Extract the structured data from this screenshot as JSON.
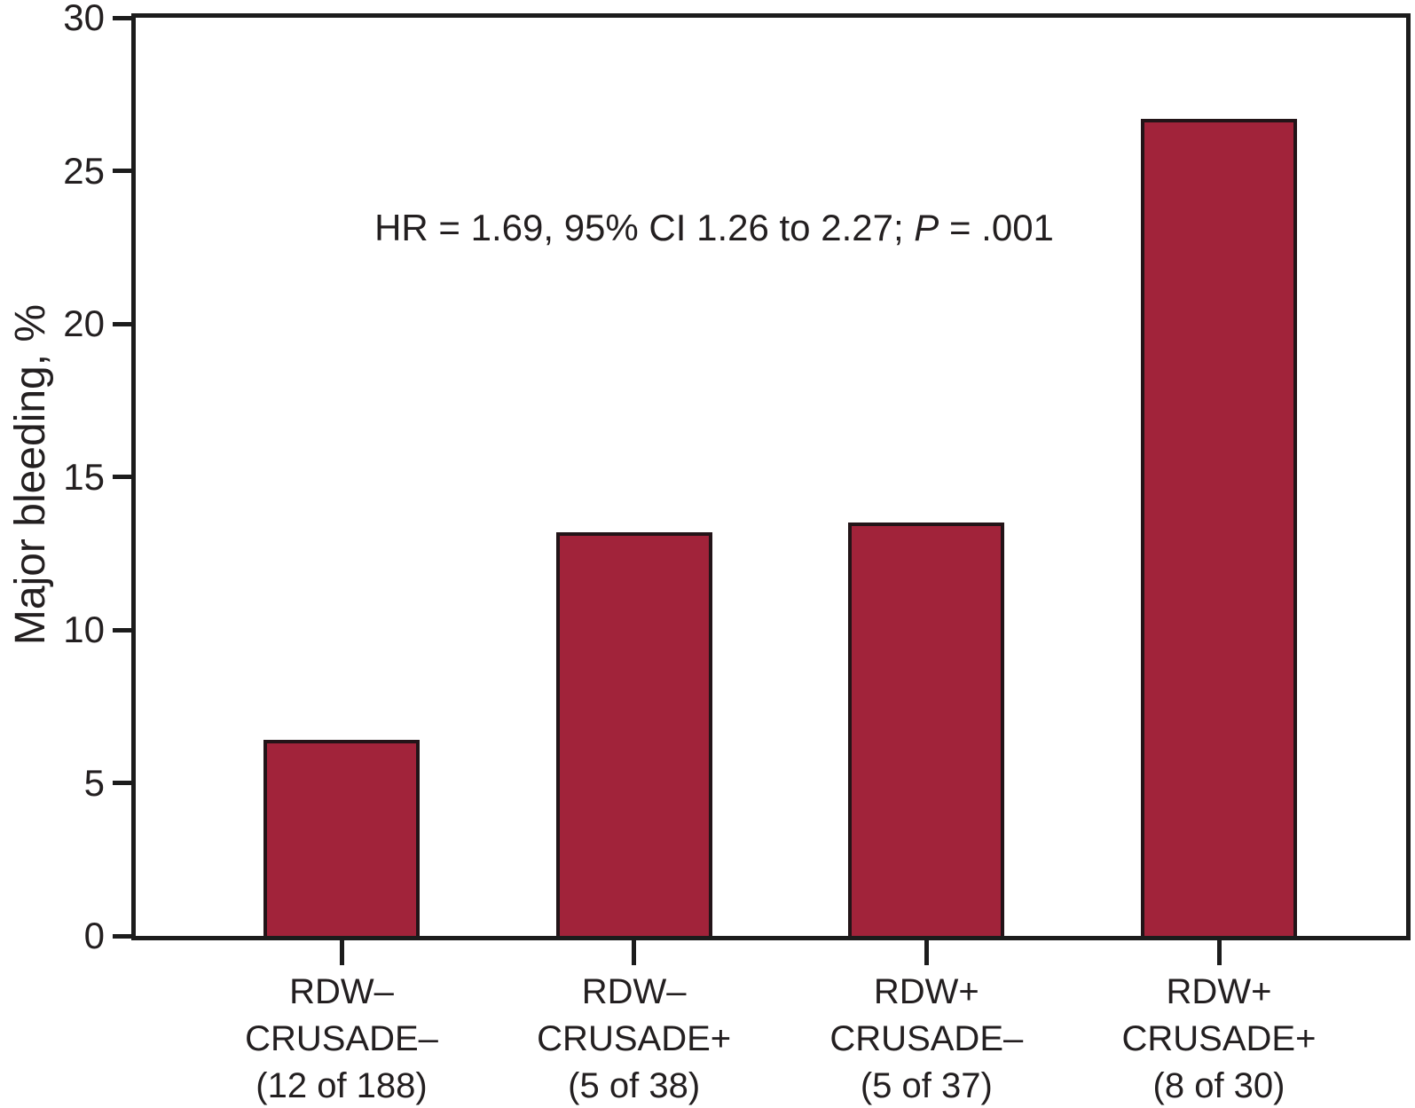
{
  "chart_data": {
    "type": "bar",
    "title": "",
    "ylabel": "Major bleeding, %",
    "xlabel": "",
    "ylim": [
      0,
      30
    ],
    "yticks": [
      0,
      5,
      10,
      15,
      20,
      25,
      30
    ],
    "categories": [
      [
        "RDW–",
        "CRUSADE–",
        "(12 of 188)"
      ],
      [
        "RDW–",
        "CRUSADE+",
        "(5 of 38)"
      ],
      [
        "RDW+",
        "CRUSADE–",
        "(5 of 37)"
      ],
      [
        "RDW+",
        "CRUSADE+",
        "(8 of 30)"
      ]
    ],
    "values": [
      6.4,
      13.2,
      13.5,
      26.7
    ],
    "counts": [
      {
        "events": 12,
        "total": 188
      },
      {
        "events": 5,
        "total": 38
      },
      {
        "events": 5,
        "total": 37
      },
      {
        "events": 8,
        "total": 30
      }
    ],
    "annotation": "HR = 1.69, 95% CI 1.26 to 2.27; P = .001",
    "annotation_parts": {
      "before": "HR = 1.69, 95% CI 1.26 to 2.27; ",
      "italic": "P",
      "after": " = .001"
    },
    "legend": "none",
    "grid": false,
    "colors": {
      "bar_fill": "#A1233A",
      "bar_border": "#231418",
      "axis": "#1C1C1C",
      "text": "#231F20",
      "background": "#FFFFFF"
    }
  }
}
